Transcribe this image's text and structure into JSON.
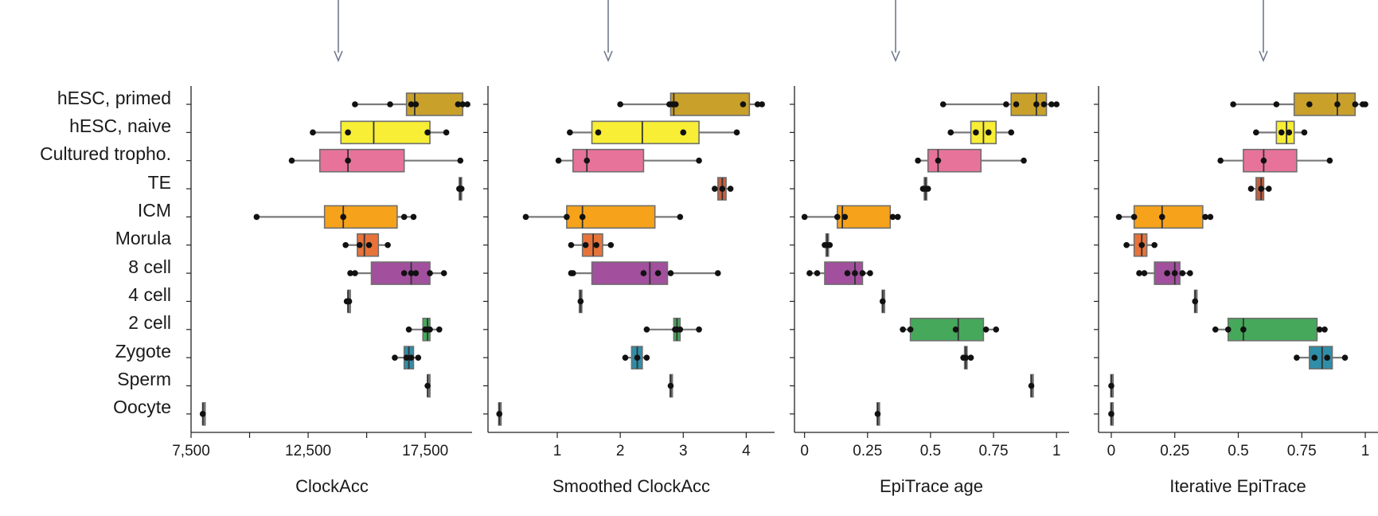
{
  "categories": [
    "hESC, primed",
    "hESC, naive",
    "Cultured tropho.",
    "TE",
    "ICM",
    "Morula",
    "8 cell",
    "4 cell",
    "2 cell",
    "Zygote",
    "Sperm",
    "Oocyte"
  ],
  "colors": {
    "hESC, primed": "#c9a12a",
    "hESC, naive": "#f7ee35",
    "Cultured tropho.": "#e8739a",
    "TE": "#c9603e",
    "ICM": "#f7a21b",
    "Morula": "#e8733a",
    "8 cell": "#a24f9e",
    "4 cell": "#7a7a7a",
    "2 cell": "#46a85a",
    "Zygote": "#2f8ea8",
    "Sperm": "#7a7a7a",
    "Oocyte": "#7a7a7a"
  },
  "chart_data": [
    {
      "type": "box",
      "title": "",
      "xlabel": "ClockAcc",
      "xlim": [
        7500,
        19500
      ],
      "xticks": [
        7500,
        12500,
        17500
      ],
      "xtick_labels": [
        "7,500",
        "12,500",
        "17,500"
      ],
      "boxes": [
        {
          "category": "hESC, primed",
          "whisker_low": 14500,
          "q1": 16700,
          "median": 17050,
          "q3": 19100,
          "whisker_high": 19400,
          "points": [
            14500,
            16000,
            16900,
            17100,
            18900,
            19100,
            19300
          ]
        },
        {
          "category": "hESC, naive",
          "whisker_low": 12700,
          "q1": 13900,
          "median": 15300,
          "q3": 17700,
          "whisker_high": 18400,
          "points": [
            12700,
            14200,
            17600,
            18400
          ]
        },
        {
          "category": "Cultured tropho.",
          "whisker_low": 11800,
          "q1": 13000,
          "median": 14200,
          "q3": 16600,
          "whisker_high": 19000,
          "points": [
            11800,
            14200,
            19000
          ]
        },
        {
          "category": "TE",
          "whisker_low": 18900,
          "q1": 18950,
          "median": 19000,
          "q3": 19050,
          "whisker_high": 19100,
          "points": [
            18950,
            19000,
            19050
          ]
        },
        {
          "category": "ICM",
          "whisker_low": 10300,
          "q1": 13200,
          "median": 14000,
          "q3": 16300,
          "whisker_high": 17000,
          "points": [
            10300,
            14000,
            16600,
            17000
          ]
        },
        {
          "category": "Morula",
          "whisker_low": 14100,
          "q1": 14600,
          "median": 14900,
          "q3": 15500,
          "whisker_high": 15900,
          "points": [
            14100,
            14700,
            15100,
            15900
          ]
        },
        {
          "category": "8 cell",
          "whisker_low": 14300,
          "q1": 15200,
          "median": 16900,
          "q3": 17700,
          "whisker_high": 18300,
          "points": [
            14300,
            14500,
            16600,
            16900,
            17100,
            17700,
            18300
          ]
        },
        {
          "category": "4 cell",
          "whisker_low": 14150,
          "q1": 14200,
          "median": 14200,
          "q3": 14250,
          "whisker_high": 14300,
          "points": [
            14150,
            14200,
            14250
          ]
        },
        {
          "category": "2 cell",
          "whisker_low": 16800,
          "q1": 17400,
          "median": 17600,
          "q3": 17700,
          "whisker_high": 18100,
          "points": [
            16800,
            17500,
            17600,
            17700,
            18100
          ]
        },
        {
          "category": "Zygote",
          "whisker_low": 16200,
          "q1": 16600,
          "median": 16800,
          "q3": 17000,
          "whisker_high": 17200,
          "points": [
            16200,
            16700,
            16900,
            17200
          ]
        },
        {
          "category": "Sperm",
          "whisker_low": 17550,
          "q1": 17600,
          "median": 17600,
          "q3": 17650,
          "whisker_high": 17700,
          "points": [
            17600
          ]
        },
        {
          "category": "Oocyte",
          "whisker_low": 7950,
          "q1": 8000,
          "median": 8000,
          "q3": 8050,
          "whisker_high": 8100,
          "points": [
            8000
          ]
        }
      ]
    },
    {
      "type": "box",
      "title": "",
      "xlabel": "Smoothed ClockAcc",
      "xlim": [
        -0.1,
        4.45
      ],
      "xticks": [
        1,
        2,
        3,
        4
      ],
      "xtick_labels": [
        "1",
        "2",
        "3",
        "4"
      ],
      "boxes": [
        {
          "category": "hESC, primed",
          "whisker_low": 2.0,
          "q1": 2.8,
          "median": 2.85,
          "q3": 4.05,
          "whisker_high": 4.25,
          "points": [
            2.0,
            2.78,
            2.83,
            2.88,
            3.95,
            4.18,
            4.25
          ]
        },
        {
          "category": "hESC, naive",
          "whisker_low": 1.2,
          "q1": 1.55,
          "median": 2.35,
          "q3": 3.25,
          "whisker_high": 3.85,
          "points": [
            1.2,
            1.65,
            3.0,
            3.85
          ]
        },
        {
          "category": "Cultured tropho.",
          "whisker_low": 1.02,
          "q1": 1.25,
          "median": 1.47,
          "q3": 2.37,
          "whisker_high": 3.25,
          "points": [
            1.02,
            1.47,
            3.25
          ]
        },
        {
          "category": "TE",
          "whisker_low": 3.5,
          "q1": 3.55,
          "median": 3.62,
          "q3": 3.68,
          "whisker_high": 3.75,
          "points": [
            3.5,
            3.62,
            3.75
          ]
        },
        {
          "category": "ICM",
          "whisker_low": 0.5,
          "q1": 1.15,
          "median": 1.4,
          "q3": 2.55,
          "whisker_high": 2.95,
          "points": [
            0.5,
            1.15,
            1.4,
            2.95
          ]
        },
        {
          "category": "Morula",
          "whisker_low": 1.22,
          "q1": 1.4,
          "median": 1.57,
          "q3": 1.72,
          "whisker_high": 1.85,
          "points": [
            1.22,
            1.45,
            1.62,
            1.85
          ]
        },
        {
          "category": "8 cell",
          "whisker_low": 1.22,
          "q1": 1.55,
          "median": 2.47,
          "q3": 2.75,
          "whisker_high": 3.55,
          "points": [
            1.22,
            1.25,
            2.37,
            2.6,
            2.8,
            3.55
          ]
        },
        {
          "category": "4 cell",
          "whisker_low": 1.33,
          "q1": 1.35,
          "median": 1.37,
          "q3": 1.39,
          "whisker_high": 1.41,
          "points": [
            1.37
          ]
        },
        {
          "category": "2 cell",
          "whisker_low": 2.42,
          "q1": 2.85,
          "median": 2.9,
          "q3": 2.95,
          "whisker_high": 3.25,
          "points": [
            2.42,
            2.87,
            2.9,
            2.95,
            3.25
          ]
        },
        {
          "category": "Zygote",
          "whisker_low": 2.08,
          "q1": 2.18,
          "median": 2.27,
          "q3": 2.35,
          "whisker_high": 2.42,
          "points": [
            2.08,
            2.27,
            2.42
          ]
        },
        {
          "category": "Sperm",
          "whisker_low": 2.78,
          "q1": 2.79,
          "median": 2.8,
          "q3": 2.81,
          "whisker_high": 2.82,
          "points": [
            2.8
          ]
        },
        {
          "category": "Oocyte",
          "whisker_low": 0.06,
          "q1": 0.07,
          "median": 0.08,
          "q3": 0.09,
          "whisker_high": 0.1,
          "points": [
            0.08
          ]
        }
      ]
    },
    {
      "type": "box",
      "title": "",
      "xlabel": "EpiTrace age",
      "xlim": [
        -0.04,
        1.05
      ],
      "xticks": [
        0,
        0.25,
        0.5,
        0.75,
        1
      ],
      "xtick_labels": [
        "0",
        "0.25",
        "0.5",
        "0.75",
        "1"
      ],
      "boxes": [
        {
          "category": "hESC, primed",
          "whisker_low": 0.55,
          "q1": 0.82,
          "median": 0.92,
          "q3": 0.96,
          "whisker_high": 1.0,
          "points": [
            0.55,
            0.8,
            0.84,
            0.92,
            0.95,
            0.98,
            1.0
          ]
        },
        {
          "category": "hESC, naive",
          "whisker_low": 0.58,
          "q1": 0.66,
          "median": 0.71,
          "q3": 0.76,
          "whisker_high": 0.82,
          "points": [
            0.58,
            0.68,
            0.73,
            0.82
          ]
        },
        {
          "category": "Cultured tropho.",
          "whisker_low": 0.45,
          "q1": 0.49,
          "median": 0.53,
          "q3": 0.7,
          "whisker_high": 0.87,
          "points": [
            0.45,
            0.53,
            0.87
          ]
        },
        {
          "category": "TE",
          "whisker_low": 0.47,
          "q1": 0.475,
          "median": 0.48,
          "q3": 0.485,
          "whisker_high": 0.49,
          "points": [
            0.47,
            0.48,
            0.49
          ]
        },
        {
          "category": "ICM",
          "whisker_low": 0.0,
          "q1": 0.13,
          "median": 0.15,
          "q3": 0.34,
          "whisker_high": 0.37,
          "points": [
            0.0,
            0.13,
            0.16,
            0.35,
            0.37
          ]
        },
        {
          "category": "Morula",
          "whisker_low": 0.08,
          "q1": 0.085,
          "median": 0.09,
          "q3": 0.095,
          "whisker_high": 0.1,
          "points": [
            0.08,
            0.09,
            0.1
          ]
        },
        {
          "category": "8 cell",
          "whisker_low": 0.02,
          "q1": 0.08,
          "median": 0.2,
          "q3": 0.23,
          "whisker_high": 0.26,
          "points": [
            0.02,
            0.05,
            0.17,
            0.2,
            0.23,
            0.26
          ]
        },
        {
          "category": "4 cell",
          "whisker_low": 0.305,
          "q1": 0.308,
          "median": 0.31,
          "q3": 0.312,
          "whisker_high": 0.315,
          "points": [
            0.31
          ]
        },
        {
          "category": "2 cell",
          "whisker_low": 0.39,
          "q1": 0.42,
          "median": 0.61,
          "q3": 0.71,
          "whisker_high": 0.76,
          "points": [
            0.39,
            0.42,
            0.6,
            0.72,
            0.76
          ]
        },
        {
          "category": "Zygote",
          "whisker_low": 0.63,
          "q1": 0.635,
          "median": 0.64,
          "q3": 0.645,
          "whisker_high": 0.66,
          "points": [
            0.63,
            0.64,
            0.66
          ]
        },
        {
          "category": "Sperm",
          "whisker_low": 0.895,
          "q1": 0.898,
          "median": 0.9,
          "q3": 0.902,
          "whisker_high": 0.905,
          "points": [
            0.9
          ]
        },
        {
          "category": "Oocyte",
          "whisker_low": 0.285,
          "q1": 0.288,
          "median": 0.29,
          "q3": 0.292,
          "whisker_high": 0.295,
          "points": [
            0.29
          ]
        }
      ]
    },
    {
      "type": "box",
      "title": "",
      "xlabel": "Iterative EpiTrace",
      "xlim": [
        -0.05,
        1.05
      ],
      "xticks": [
        0,
        0.25,
        0.5,
        0.75,
        1
      ],
      "xtick_labels": [
        "0",
        "0.25",
        "0.5",
        "0.75",
        "1"
      ],
      "boxes": [
        {
          "category": "hESC, primed",
          "whisker_low": 0.48,
          "q1": 0.72,
          "median": 0.89,
          "q3": 0.96,
          "whisker_high": 1.0,
          "points": [
            0.48,
            0.65,
            0.78,
            0.89,
            0.96,
            0.99,
            1.0
          ]
        },
        {
          "category": "hESC, naive",
          "whisker_low": 0.57,
          "q1": 0.65,
          "median": 0.69,
          "q3": 0.72,
          "whisker_high": 0.76,
          "points": [
            0.57,
            0.67,
            0.7,
            0.76
          ]
        },
        {
          "category": "Cultured tropho.",
          "whisker_low": 0.43,
          "q1": 0.52,
          "median": 0.6,
          "q3": 0.73,
          "whisker_high": 0.86,
          "points": [
            0.43,
            0.6,
            0.86
          ]
        },
        {
          "category": "TE",
          "whisker_low": 0.55,
          "q1": 0.57,
          "median": 0.59,
          "q3": 0.6,
          "whisker_high": 0.62,
          "points": [
            0.55,
            0.59,
            0.62
          ]
        },
        {
          "category": "ICM",
          "whisker_low": 0.03,
          "q1": 0.09,
          "median": 0.2,
          "q3": 0.36,
          "whisker_high": 0.39,
          "points": [
            0.03,
            0.09,
            0.2,
            0.37,
            0.39
          ]
        },
        {
          "category": "Morula",
          "whisker_low": 0.06,
          "q1": 0.09,
          "median": 0.12,
          "q3": 0.14,
          "whisker_high": 0.17,
          "points": [
            0.06,
            0.12,
            0.17
          ]
        },
        {
          "category": "8 cell",
          "whisker_low": 0.11,
          "q1": 0.17,
          "median": 0.25,
          "q3": 0.27,
          "whisker_high": 0.31,
          "points": [
            0.11,
            0.13,
            0.22,
            0.25,
            0.28,
            0.31
          ]
        },
        {
          "category": "4 cell",
          "whisker_low": 0.325,
          "q1": 0.328,
          "median": 0.33,
          "q3": 0.332,
          "whisker_high": 0.335,
          "points": [
            0.33
          ]
        },
        {
          "category": "2 cell",
          "whisker_low": 0.41,
          "q1": 0.46,
          "median": 0.52,
          "q3": 0.81,
          "whisker_high": 0.84,
          "points": [
            0.41,
            0.46,
            0.52,
            0.82,
            0.84
          ]
        },
        {
          "category": "Zygote",
          "whisker_low": 0.73,
          "q1": 0.78,
          "median": 0.83,
          "q3": 0.87,
          "whisker_high": 0.92,
          "points": [
            0.73,
            0.8,
            0.85,
            0.92
          ]
        },
        {
          "category": "Sperm",
          "whisker_low": -0.005,
          "q1": -0.002,
          "median": 0,
          "q3": 0.002,
          "whisker_high": 0.005,
          "points": [
            0
          ]
        },
        {
          "category": "Oocyte",
          "whisker_low": -0.005,
          "q1": -0.002,
          "median": 0,
          "q3": 0.002,
          "whisker_high": 0.005,
          "points": [
            0
          ]
        }
      ]
    }
  ]
}
